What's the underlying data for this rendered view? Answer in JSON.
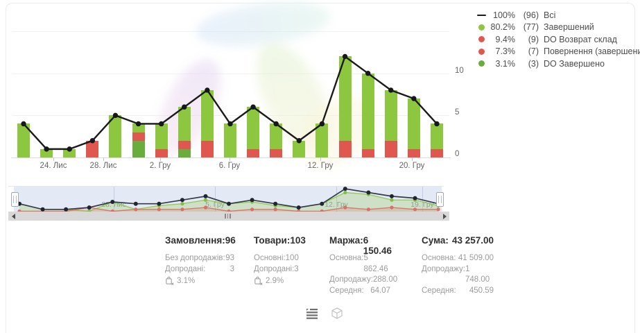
{
  "legend": {
    "items": [
      {
        "marker": "line-dash",
        "color": "#1a1a1a",
        "percent": "100%",
        "count": "(96)",
        "label": "Всі"
      },
      {
        "marker": "dot",
        "color": "#8dc63f",
        "percent": "80.2%",
        "count": "(77)",
        "label": "Завершений"
      },
      {
        "marker": "dot",
        "color": "#e0574f",
        "percent": "9.4%",
        "count": "(9)",
        "label": "DO Возврат склад"
      },
      {
        "marker": "dot",
        "color": "#e0574f",
        "percent": "7.3%",
        "count": "(7)",
        "label": "Повернення (завершений)"
      },
      {
        "marker": "dot",
        "color": "#69ad3c",
        "percent": "3.1%",
        "count": "(3)",
        "label": "DO Завершено"
      }
    ]
  },
  "chart_data": {
    "type": "bar",
    "stacked": true,
    "n_points": 19,
    "ylim": [
      0,
      15
    ],
    "y_ticks": [
      "0",
      "5",
      "10"
    ],
    "grid": true,
    "legend_position": "top-right",
    "x_axis_tick_labels": [
      {
        "text": "24. Лис",
        "x": 77
      },
      {
        "text": "28. Лис",
        "x": 149
      },
      {
        "text": "2. Гру",
        "x": 231
      },
      {
        "text": "6. Гру",
        "x": 331
      },
      {
        "text": "12. Гру",
        "x": 462
      },
      {
        "text": "20. Гру",
        "x": 594
      }
    ],
    "series": [
      {
        "name": "Всі",
        "type": "line",
        "color": "#1a1a1a",
        "values": [
          4,
          1,
          1,
          2,
          5,
          4,
          4,
          6,
          8,
          4,
          6,
          4,
          2,
          4,
          12,
          10,
          8,
          7,
          4
        ]
      },
      {
        "name": "Завершений",
        "type": "bar",
        "color": "#8dc63f",
        "values": [
          4,
          1,
          1,
          0,
          5,
          1,
          3,
          4,
          6,
          4,
          5,
          3,
          2,
          4,
          10,
          9,
          6,
          6,
          3
        ]
      },
      {
        "name": "Повернення / DO Возврат склад",
        "type": "bar",
        "color": "#e0574f",
        "values": [
          0,
          0,
          0,
          2,
          0,
          1,
          1,
          1,
          2,
          0,
          1,
          1,
          0,
          0,
          2,
          1,
          2,
          1,
          1
        ]
      },
      {
        "name": "DO Завершено",
        "type": "bar",
        "color": "#69ad3c",
        "values": [
          0,
          0,
          0,
          0,
          0,
          2,
          0,
          1,
          0,
          0,
          0,
          0,
          0,
          0,
          0,
          0,
          0,
          0,
          0
        ]
      }
    ]
  },
  "navigator": {
    "tick_labels": [
      {
        "text": "28. Лис",
        "x": 152
      },
      {
        "text": "5. Гру",
        "x": 298
      },
      {
        "text": "12. Гру",
        "x": 473
      },
      {
        "text": "19. Гру",
        "x": 597
      }
    ]
  },
  "stats": {
    "columns": [
      {
        "id": "orders",
        "title": "Замовлення:",
        "value": "96",
        "rows": [
          {
            "label": "Без допродажів:",
            "value": "93"
          },
          {
            "label": "Допродані:",
            "value": "3"
          }
        ],
        "upsell_percent": "3.1%"
      },
      {
        "id": "products",
        "title": "Товари:",
        "value": "103",
        "rows": [
          {
            "label": "Основні:",
            "value": "100"
          },
          {
            "label": "Допродані:",
            "value": "3"
          }
        ],
        "upsell_percent": "2.9%"
      },
      {
        "id": "margin",
        "title": "Маржа:",
        "value": "6 150.46",
        "rows": [
          {
            "label": "Основна:",
            "value": "5 862.46"
          },
          {
            "label": "Допродажу:",
            "value": "288.00"
          },
          {
            "label": "Середня:",
            "value": "64.07"
          }
        ]
      },
      {
        "id": "sum",
        "title": "Сума:",
        "value": "43 257.00",
        "rows": [
          {
            "label": "Основна:",
            "value": "41 509.00"
          },
          {
            "label": "Допродажу:",
            "value": "1 748.00"
          },
          {
            "label": "Середня:",
            "value": "450.59"
          }
        ]
      }
    ]
  }
}
